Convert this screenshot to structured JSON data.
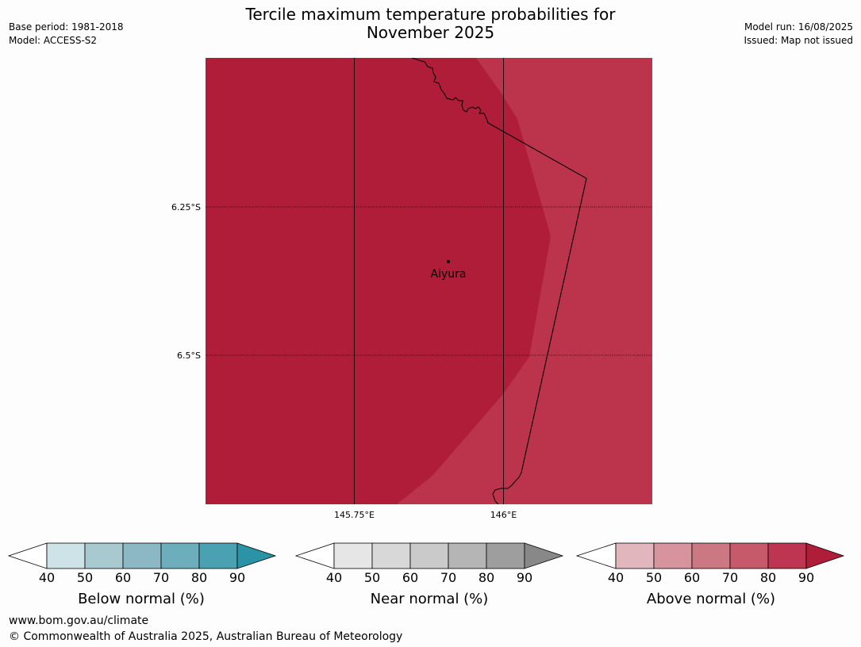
{
  "title_line1": "Tercile maximum temperature probabilities for",
  "title_line2": "November 2025",
  "meta_left": {
    "base_period": "Base period: 1981-2018",
    "model": "Model: ACCESS-S2"
  },
  "meta_right": {
    "model_run": "Model run: 16/08/2025",
    "issued": "Issued: Map not issued"
  },
  "map": {
    "lat_labels": [
      "6.25°S",
      "6.5°S"
    ],
    "lon_labels": [
      "145.75°E",
      "146°E"
    ],
    "place_name": "Aiyura",
    "colors": {
      "band_90_plus": "#b01d39",
      "band_80_90": "#bc344b"
    }
  },
  "colorbars": [
    {
      "label": "Below normal (%)",
      "ticks": [
        "40",
        "50",
        "60",
        "70",
        "80",
        "90"
      ],
      "colors": [
        "#cde3e8",
        "#a8c9cf",
        "#8bb8c4",
        "#6daebc",
        "#4aa1b2",
        "#2a94a6"
      ]
    },
    {
      "label": "Near normal (%)",
      "ticks": [
        "40",
        "50",
        "60",
        "70",
        "80",
        "90"
      ],
      "colors": [
        "#e6e6e6",
        "#d8d8d8",
        "#cacaca",
        "#b5b5b5",
        "#9e9e9e",
        "#888888"
      ]
    },
    {
      "label": "Above normal (%)",
      "ticks": [
        "40",
        "50",
        "60",
        "70",
        "80",
        "90"
      ],
      "colors": [
        "#e2b6bd",
        "#d7949f",
        "#cc7882",
        "#c65a6a",
        "#bd3550",
        "#b01d39"
      ]
    }
  ],
  "footer": {
    "url": "www.bom.gov.au/climate",
    "copyright": "© Commonwealth of Australia 2025, Australian Bureau of Meteorology"
  }
}
